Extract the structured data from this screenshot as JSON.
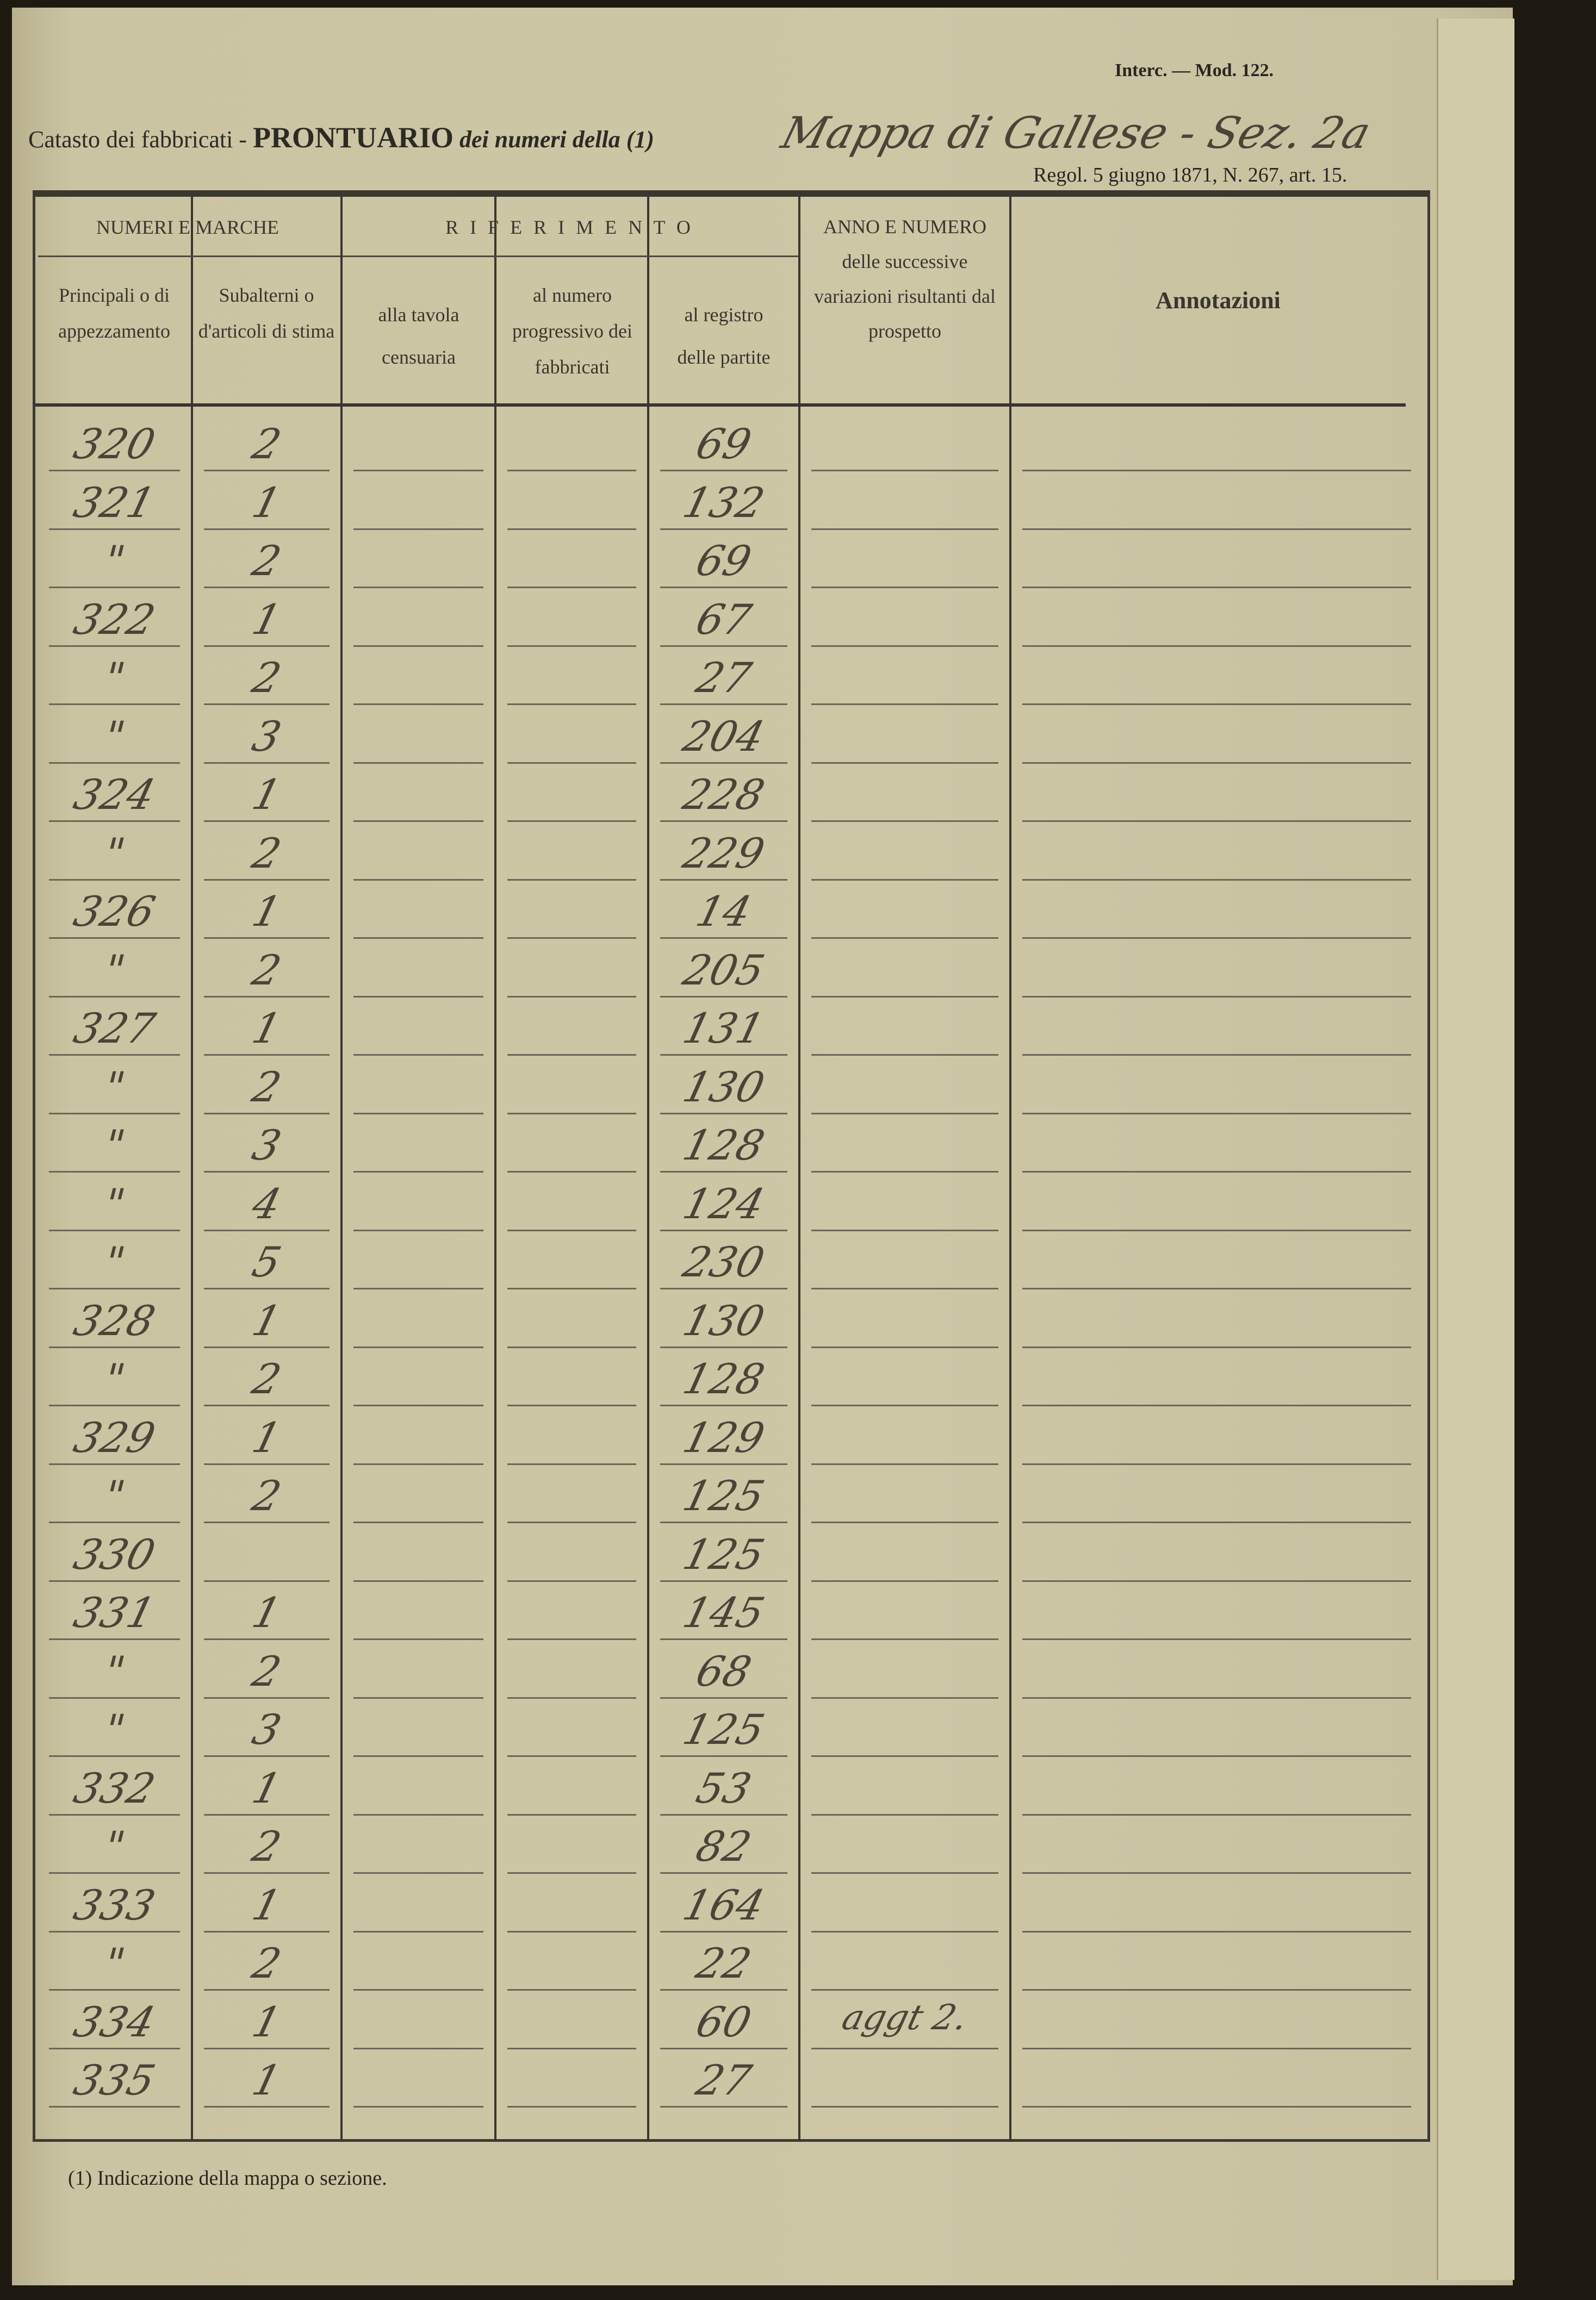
{
  "header": {
    "form_prefix": "Catasto dei fabbricati -",
    "form_title": "PRONTUARIO",
    "form_suffix": "dei numeri della (1)",
    "map_name_handwritten": "Mappa di Gallese - Sez. 2a",
    "model": "Interc. — Mod. 122.",
    "regulation": "Regol. 5 giugno 1871, N. 267, art. 15."
  },
  "columns": {
    "group_numeri": "NUMERI E MARCHE",
    "group_riferimento": "R I F E R I M E N T O",
    "principali": "Principali o di appezzamento",
    "subalterni": "Subalterni o d'articoli di stima",
    "tavola": "alla tavola censuaria",
    "numero": "al numero progressivo dei fabbricati",
    "registro": "al registro delle partite",
    "anno": "ANNO E NUMERO delle successive variazioni risultanti dal prospetto",
    "annotazioni": "Annotazioni"
  },
  "rows": [
    {
      "principale": "320",
      "subalterno": "2",
      "partita": "69",
      "variazioni": ""
    },
    {
      "principale": "321",
      "subalterno": "1",
      "partita": "132",
      "variazioni": ""
    },
    {
      "principale": "\"",
      "subalterno": "2",
      "partita": "69",
      "variazioni": ""
    },
    {
      "principale": "322",
      "subalterno": "1",
      "partita": "67",
      "variazioni": ""
    },
    {
      "principale": "\"",
      "subalterno": "2",
      "partita": "27",
      "variazioni": ""
    },
    {
      "principale": "\"",
      "subalterno": "3",
      "partita": "204",
      "variazioni": ""
    },
    {
      "principale": "324",
      "subalterno": "1",
      "partita": "228",
      "variazioni": ""
    },
    {
      "principale": "\"",
      "subalterno": "2",
      "partita": "229",
      "variazioni": ""
    },
    {
      "principale": "326",
      "subalterno": "1",
      "partita": "14",
      "variazioni": ""
    },
    {
      "principale": "\"",
      "subalterno": "2",
      "partita": "205",
      "variazioni": ""
    },
    {
      "principale": "327",
      "subalterno": "1",
      "partita": "131",
      "variazioni": ""
    },
    {
      "principale": "\"",
      "subalterno": "2",
      "partita": "130",
      "variazioni": ""
    },
    {
      "principale": "\"",
      "subalterno": "3",
      "partita": "128",
      "variazioni": ""
    },
    {
      "principale": "\"",
      "subalterno": "4",
      "partita": "124",
      "variazioni": ""
    },
    {
      "principale": "\"",
      "subalterno": "5",
      "partita": "230",
      "variazioni": ""
    },
    {
      "principale": "328",
      "subalterno": "1",
      "partita": "130",
      "variazioni": ""
    },
    {
      "principale": "\"",
      "subalterno": "2",
      "partita": "128",
      "variazioni": ""
    },
    {
      "principale": "329",
      "subalterno": "1",
      "partita": "129",
      "variazioni": ""
    },
    {
      "principale": "\"",
      "subalterno": "2",
      "partita": "125",
      "variazioni": ""
    },
    {
      "principale": "330",
      "subalterno": "",
      "partita": "125",
      "variazioni": ""
    },
    {
      "principale": "331",
      "subalterno": "1",
      "partita": "145",
      "variazioni": ""
    },
    {
      "principale": "\"",
      "subalterno": "2",
      "partita": "68",
      "variazioni": ""
    },
    {
      "principale": "\"",
      "subalterno": "3",
      "partita": "125",
      "variazioni": ""
    },
    {
      "principale": "332",
      "subalterno": "1",
      "partita": "53",
      "variazioni": ""
    },
    {
      "principale": "\"",
      "subalterno": "2",
      "partita": "82",
      "variazioni": ""
    },
    {
      "principale": "333",
      "subalterno": "1",
      "partita": "164",
      "variazioni": ""
    },
    {
      "principale": "\"",
      "subalterno": "2",
      "partita": "22",
      "variazioni": ""
    },
    {
      "principale": "334",
      "subalterno": "1",
      "partita": "60",
      "variazioni": "aggt 2."
    },
    {
      "principale": "335",
      "subalterno": "1",
      "partita": "27",
      "variazioni": ""
    }
  ],
  "footnote": "(1) Indicazione della mappa o sezione."
}
